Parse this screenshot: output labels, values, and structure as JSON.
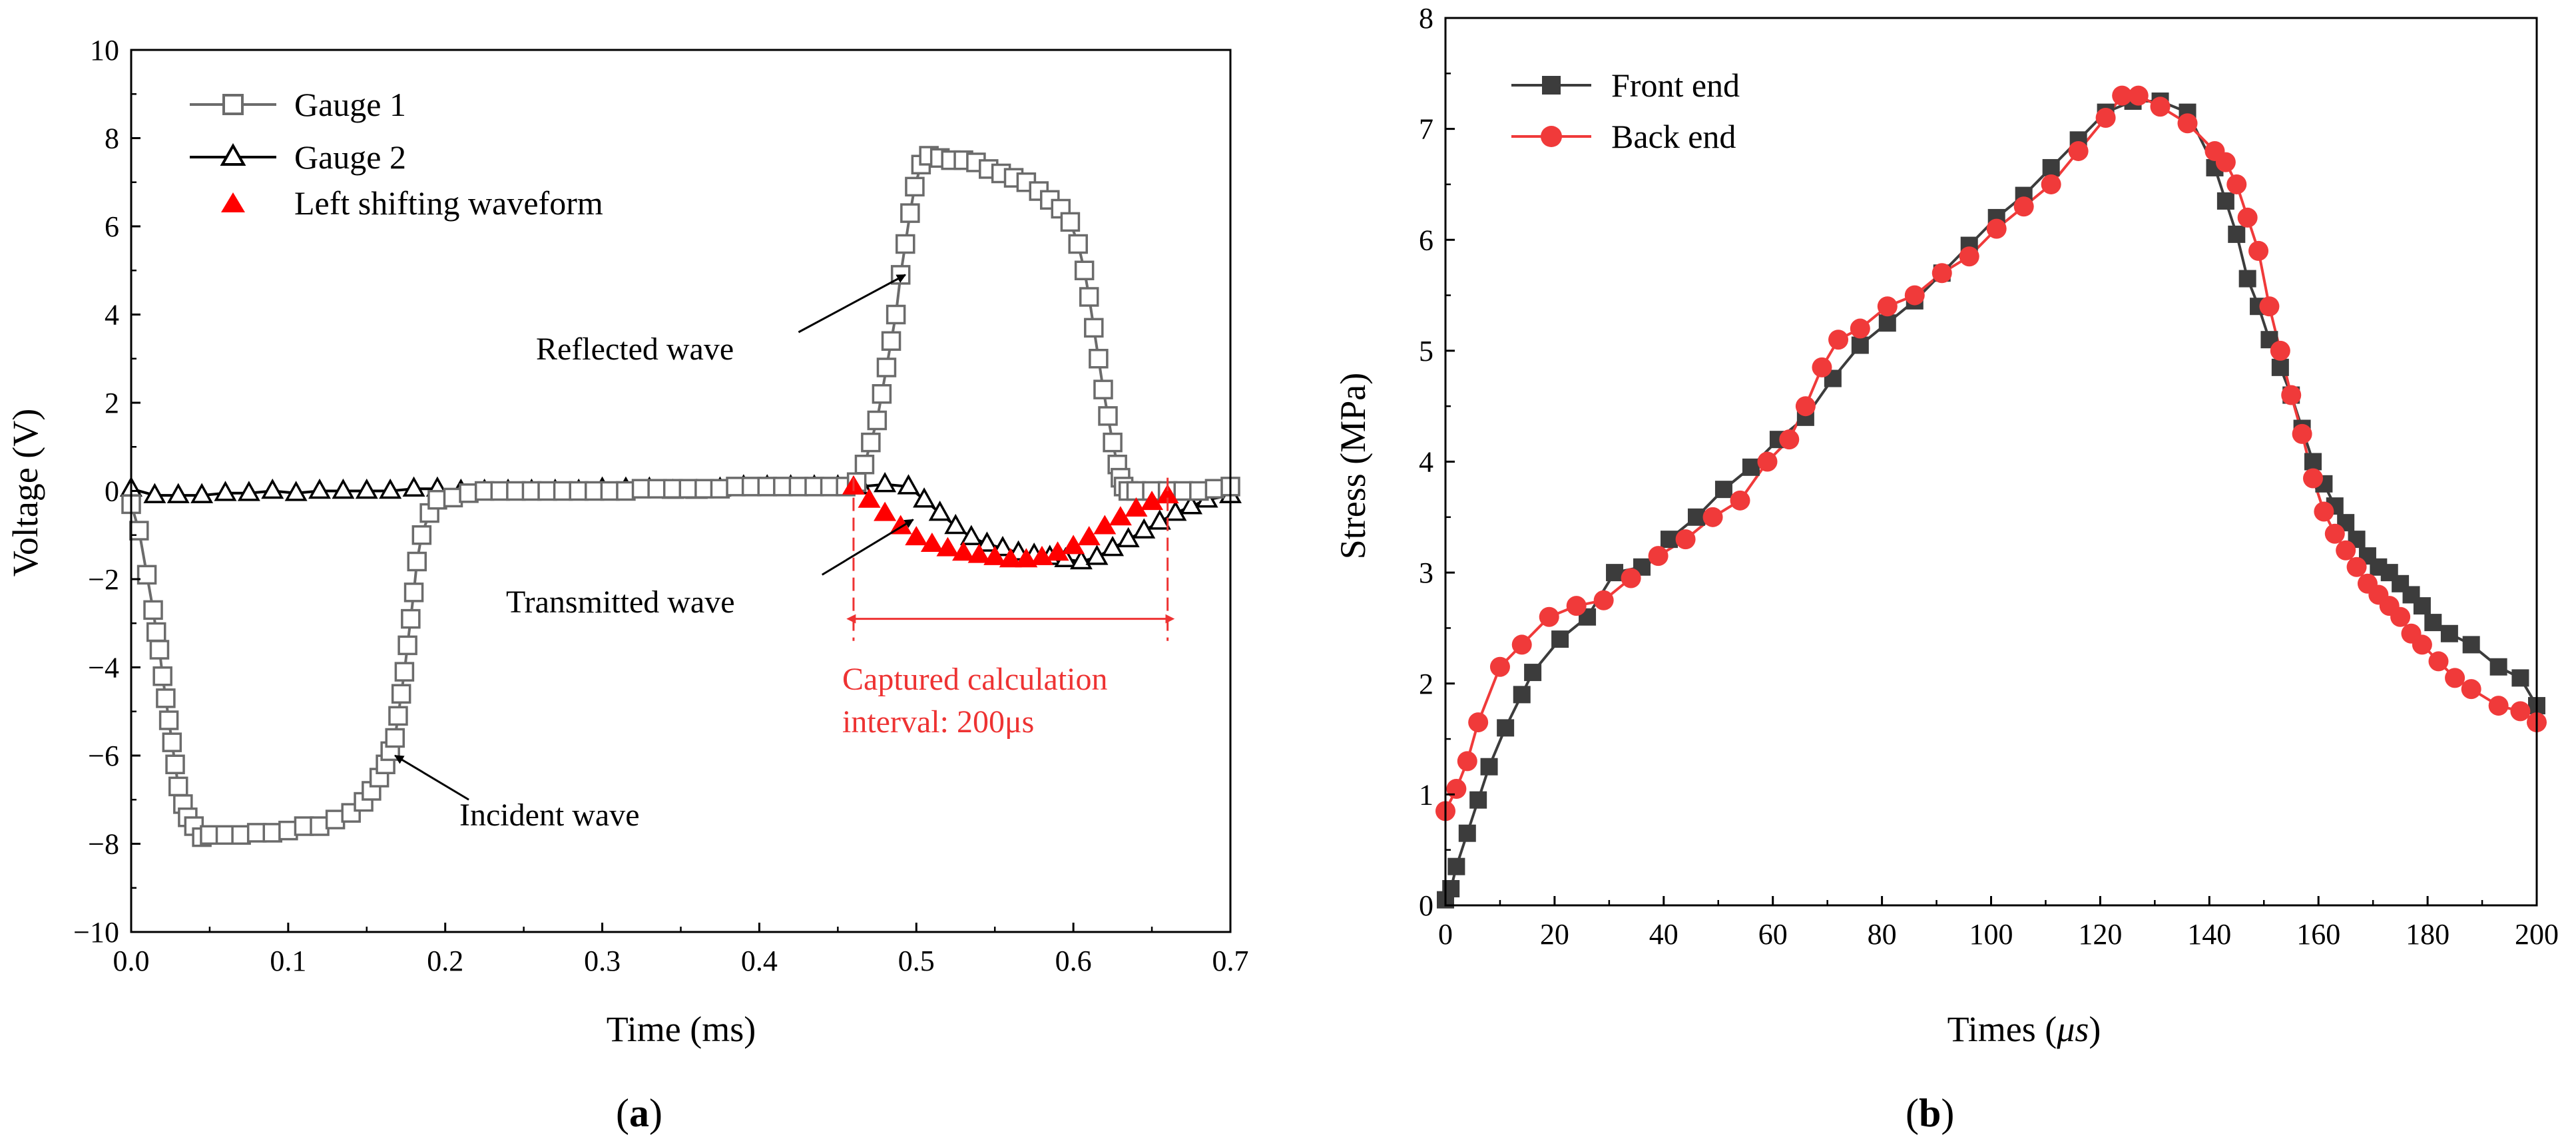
{
  "colors": {
    "gauge1": "#6b6b6b",
    "gauge2": "#000000",
    "shift": "#ff0000",
    "front": "#3c3c3c",
    "back": "#f03a3a",
    "annotation_red": "#ee3333"
  },
  "chart_data": [
    {
      "type": "line",
      "panel_label_left": "(",
      "panel_label_letter": "a",
      "panel_label_right": ")",
      "xlabel": "Time (ms)",
      "ylabel": "Voltage (V)",
      "xlim": [
        0.0,
        0.7
      ],
      "ylim": [
        -10,
        10
      ],
      "xticks": [
        "0.0",
        "0.1",
        "0.2",
        "0.3",
        "0.4",
        "0.5",
        "0.6",
        "0.7"
      ],
      "xtick_values": [
        0.0,
        0.1,
        0.2,
        0.3,
        0.4,
        0.5,
        0.6,
        0.7
      ],
      "yticks": [
        "−10",
        "−8",
        "−6",
        "−4",
        "−2",
        "0",
        "2",
        "4",
        "6",
        "8",
        "10"
      ],
      "ytick_values": [
        -10,
        -8,
        -6,
        -4,
        -2,
        0,
        2,
        4,
        6,
        8,
        10
      ],
      "legend": [
        {
          "label": "Gauge 1",
          "marker": "open-square",
          "color": "#6b6b6b"
        },
        {
          "label": "Gauge 2",
          "marker": "open-triangle",
          "color": "#000000"
        },
        {
          "label": "Left shifting waveform",
          "marker": "filled-triangle",
          "color": "#ff0000"
        }
      ],
      "annotations": {
        "reflected": "Reflected wave",
        "transmitted": "Transmitted wave",
        "incident": "Incident wave",
        "interval_line1": "Captured calculation",
        "interval_line2": "interval: 200μs"
      },
      "annotation_points": {
        "reflected_tip": [
          0.493,
          4.9
        ],
        "reflected_tail": [
          0.425,
          3.6
        ],
        "transmitted_tip": [
          0.498,
          -0.65
        ],
        "transmitted_tail": [
          0.44,
          -1.9
        ],
        "incident_tip": [
          0.168,
          -6.0
        ],
        "incident_tail": [
          0.215,
          -7.0
        ]
      },
      "interval": {
        "start": 0.46,
        "end": 0.66,
        "y": -2.9
      },
      "series": [
        {
          "name": "Gauge 1",
          "x": [
            0.0,
            0.005,
            0.01,
            0.014,
            0.016,
            0.018,
            0.02,
            0.022,
            0.024,
            0.026,
            0.028,
            0.03,
            0.033,
            0.036,
            0.04,
            0.045,
            0.05,
            0.06,
            0.07,
            0.08,
            0.09,
            0.1,
            0.11,
            0.12,
            0.13,
            0.14,
            0.148,
            0.153,
            0.158,
            0.162,
            0.165,
            0.168,
            0.17,
            0.172,
            0.174,
            0.176,
            0.178,
            0.18,
            0.182,
            0.185,
            0.19,
            0.195,
            0.205,
            0.215,
            0.225,
            0.235,
            0.245,
            0.255,
            0.265,
            0.275,
            0.285,
            0.295,
            0.305,
            0.315,
            0.325,
            0.335,
            0.345,
            0.355,
            0.365,
            0.375,
            0.385,
            0.395,
            0.405,
            0.415,
            0.425,
            0.435,
            0.445,
            0.455,
            0.462,
            0.467,
            0.471,
            0.475,
            0.478,
            0.481,
            0.484,
            0.487,
            0.49,
            0.493,
            0.496,
            0.499,
            0.503,
            0.508,
            0.515,
            0.522,
            0.53,
            0.538,
            0.546,
            0.554,
            0.562,
            0.57,
            0.578,
            0.585,
            0.592,
            0.598,
            0.603,
            0.607,
            0.61,
            0.613,
            0.616,
            0.619,
            0.622,
            0.625,
            0.628,
            0.63,
            0.632,
            0.635,
            0.64,
            0.65,
            0.66,
            0.67,
            0.68,
            0.69,
            0.7
          ],
          "values": [
            -0.3,
            -0.9,
            -1.9,
            -2.7,
            -3.2,
            -3.6,
            -4.2,
            -4.7,
            -5.2,
            -5.7,
            -6.2,
            -6.7,
            -7.1,
            -7.4,
            -7.6,
            -7.85,
            -7.8,
            -7.8,
            -7.8,
            -7.75,
            -7.75,
            -7.7,
            -7.6,
            -7.6,
            -7.45,
            -7.3,
            -7.05,
            -6.8,
            -6.5,
            -6.2,
            -5.9,
            -5.6,
            -5.1,
            -4.6,
            -4.1,
            -3.5,
            -2.9,
            -2.3,
            -1.6,
            -1.0,
            -0.5,
            -0.2,
            -0.15,
            -0.05,
            0.0,
            0.0,
            0.0,
            0.0,
            0.0,
            0.0,
            0.0,
            0.0,
            0.0,
            0.0,
            0.05,
            0.05,
            0.05,
            0.05,
            0.05,
            0.05,
            0.1,
            0.1,
            0.1,
            0.1,
            0.1,
            0.1,
            0.1,
            0.1,
            0.2,
            0.6,
            1.1,
            1.6,
            2.2,
            2.8,
            3.4,
            4.0,
            4.9,
            5.6,
            6.3,
            6.9,
            7.4,
            7.6,
            7.55,
            7.5,
            7.5,
            7.45,
            7.3,
            7.2,
            7.1,
            7.0,
            6.8,
            6.6,
            6.4,
            6.1,
            5.6,
            5.0,
            4.4,
            3.7,
            3.0,
            2.3,
            1.7,
            1.1,
            0.6,
            0.3,
            0.1,
            0.0,
            0.0,
            0.0,
            0.0,
            0.0,
            0.0,
            0.05,
            0.1
          ]
        },
        {
          "name": "Gauge 2",
          "x": [
            0.0,
            0.015,
            0.03,
            0.045,
            0.06,
            0.075,
            0.09,
            0.105,
            0.12,
            0.135,
            0.15,
            0.165,
            0.18,
            0.195,
            0.21,
            0.225,
            0.24,
            0.255,
            0.27,
            0.285,
            0.3,
            0.315,
            0.33,
            0.345,
            0.36,
            0.375,
            0.39,
            0.405,
            0.42,
            0.435,
            0.45,
            0.465,
            0.48,
            0.495,
            0.505,
            0.515,
            0.525,
            0.535,
            0.545,
            0.555,
            0.565,
            0.575,
            0.585,
            0.595,
            0.605,
            0.615,
            0.625,
            0.635,
            0.645,
            0.655,
            0.665,
            0.675,
            0.685,
            0.7
          ],
          "values": [
            0.05,
            -0.1,
            -0.1,
            -0.1,
            -0.05,
            -0.05,
            0.0,
            -0.05,
            0.0,
            0.0,
            0.0,
            0.0,
            0.05,
            0.05,
            0.0,
            0.0,
            0.0,
            0.0,
            0.0,
            0.0,
            0.05,
            0.05,
            0.05,
            0.0,
            0.0,
            0.05,
            0.1,
            0.1,
            0.1,
            0.1,
            0.1,
            0.1,
            0.15,
            0.1,
            -0.2,
            -0.5,
            -0.8,
            -1.05,
            -1.2,
            -1.3,
            -1.4,
            -1.45,
            -1.5,
            -1.55,
            -1.6,
            -1.5,
            -1.3,
            -1.1,
            -0.9,
            -0.7,
            -0.5,
            -0.35,
            -0.2,
            -0.1
          ]
        },
        {
          "name": "Left shifting waveform",
          "x": [
            0.46,
            0.47,
            0.48,
            0.49,
            0.5,
            0.51,
            0.52,
            0.53,
            0.54,
            0.55,
            0.56,
            0.57,
            0.58,
            0.59,
            0.6,
            0.61,
            0.62,
            0.63,
            0.64,
            0.65,
            0.66
          ],
          "values": [
            0.1,
            -0.2,
            -0.5,
            -0.8,
            -1.05,
            -1.2,
            -1.3,
            -1.4,
            -1.45,
            -1.5,
            -1.55,
            -1.55,
            -1.5,
            -1.4,
            -1.25,
            -1.05,
            -0.8,
            -0.6,
            -0.4,
            -0.25,
            -0.1
          ]
        }
      ]
    },
    {
      "type": "line",
      "panel_label_left": "(",
      "panel_label_letter": "b",
      "panel_label_right": ")",
      "xlabel_prefix": "Times (",
      "xlabel_unit": "μs",
      "xlabel_suffix": ")",
      "ylabel": "Stress (MPa)",
      "xlim": [
        0,
        200
      ],
      "ylim": [
        0,
        8
      ],
      "xticks": [
        "0",
        "20",
        "40",
        "60",
        "80",
        "100",
        "120",
        "140",
        "160",
        "180",
        "200"
      ],
      "xtick_values": [
        0,
        20,
        40,
        60,
        80,
        100,
        120,
        140,
        160,
        180,
        200
      ],
      "yticks": [
        "0",
        "1",
        "2",
        "3",
        "4",
        "5",
        "6",
        "7",
        "8"
      ],
      "ytick_values": [
        0,
        1,
        2,
        3,
        4,
        5,
        6,
        7,
        8
      ],
      "legend": [
        {
          "label": "Front end",
          "marker": "filled-square",
          "color": "#3c3c3c"
        },
        {
          "label": "Back end",
          "marker": "filled-circle",
          "color": "#f03a3a"
        }
      ],
      "series": [
        {
          "name": "Front end",
          "x": [
            0,
            1,
            2,
            4,
            6,
            8,
            11,
            14,
            16,
            21,
            26,
            31,
            36,
            41,
            46,
            51,
            56,
            61,
            66,
            71,
            76,
            81,
            86,
            91,
            96,
            101,
            106,
            111,
            116,
            121,
            126,
            131,
            136,
            141,
            143,
            145,
            147,
            149,
            151,
            153,
            155,
            157,
            159,
            161,
            163,
            165,
            167,
            169,
            171,
            173,
            175,
            177,
            179,
            181,
            184,
            188,
            193,
            197,
            200
          ],
          "values": [
            0.05,
            0.15,
            0.35,
            0.65,
            0.95,
            1.25,
            1.6,
            1.9,
            2.1,
            2.4,
            2.6,
            3.0,
            3.05,
            3.3,
            3.5,
            3.75,
            3.95,
            4.2,
            4.4,
            4.75,
            5.05,
            5.25,
            5.45,
            5.7,
            5.95,
            6.2,
            6.4,
            6.65,
            6.9,
            7.15,
            7.25,
            7.25,
            7.15,
            6.65,
            6.35,
            6.05,
            5.65,
            5.4,
            5.1,
            4.85,
            4.6,
            4.3,
            4.0,
            3.8,
            3.6,
            3.45,
            3.3,
            3.15,
            3.05,
            3.0,
            2.9,
            2.8,
            2.7,
            2.55,
            2.45,
            2.35,
            2.15,
            2.05,
            1.8
          ]
        },
        {
          "name": "Back end",
          "x": [
            0,
            2,
            4,
            6,
            10,
            14,
            19,
            24,
            29,
            34,
            39,
            44,
            49,
            54,
            59,
            63,
            66,
            69,
            72,
            76,
            81,
            86,
            91,
            96,
            101,
            106,
            111,
            116,
            121,
            124,
            127,
            131,
            136,
            141,
            143,
            145,
            147,
            149,
            151,
            153,
            155,
            157,
            159,
            161,
            163,
            165,
            167,
            169,
            171,
            173,
            175,
            177,
            179,
            182,
            185,
            188,
            193,
            197,
            200
          ],
          "values": [
            0.85,
            1.05,
            1.3,
            1.65,
            2.15,
            2.35,
            2.6,
            2.7,
            2.75,
            2.95,
            3.15,
            3.3,
            3.5,
            3.65,
            4.0,
            4.2,
            4.5,
            4.85,
            5.1,
            5.2,
            5.4,
            5.5,
            5.7,
            5.85,
            6.1,
            6.3,
            6.5,
            6.8,
            7.1,
            7.3,
            7.3,
            7.2,
            7.05,
            6.8,
            6.7,
            6.5,
            6.2,
            5.9,
            5.4,
            5.0,
            4.6,
            4.25,
            3.85,
            3.55,
            3.35,
            3.2,
            3.05,
            2.9,
            2.8,
            2.7,
            2.6,
            2.45,
            2.35,
            2.2,
            2.05,
            1.95,
            1.8,
            1.75,
            1.65
          ]
        }
      ]
    }
  ]
}
